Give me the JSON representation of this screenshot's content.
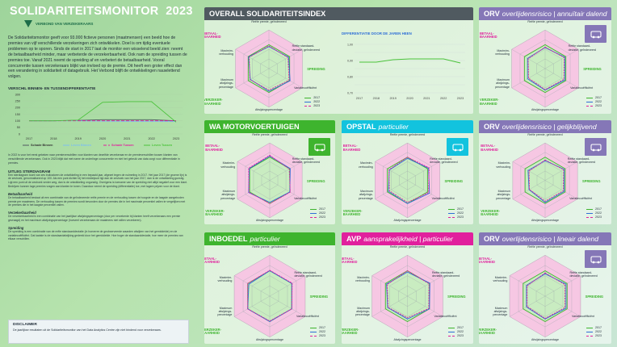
{
  "header": {
    "title": "SOLIDARITEITSMONITOR",
    "year": "2023",
    "logo_text": "VERBOND VAN VERZEKERAARS"
  },
  "intro": "De Solidariteitsmonitor geeft voor 93.000 fictieve personen (maatmensen) een beeld hoe de premies van vijf verschillende verzekeringen zich ontwikkelen. Doel is om tijdig eventuele problemen op te sporen. Sinds de start in 2017 laat de monitor een wisselend beeld zien: neemt de betaalbaarheid minder, maar verbeterde de verzekerbaarheid. Ook nam de spreiding tussen de premies toe. Vanaf 2021 neemt de spreiding af en verbetert de betaalbaarheid. Vooral concurrentie tussen verzekeraars blijkt van invloed op de premie. Dit heeft een groter effect dan een verandering in solidariteit of datagebruik. Het Verbond blijft de ontwikkelingen nauwlettend volgen.",
  "left_chart": {
    "title": "VERSCHIL BINNEN- EN TUSSENDIFFERENTIATIE"
  },
  "chart_data": [
    {
      "type": "line",
      "title": "VERSCHIL BINNEN- EN TUSSENDIFFERENTIATIE",
      "x": [
        "2017",
        "2018",
        "2019",
        "2020",
        "2021",
        "2022",
        "2023"
      ],
      "ylim": [
        0,
        300
      ],
      "yticks": [
        0,
        50,
        100,
        150,
        200,
        250,
        300
      ],
      "series": [
        {
          "name": "Schade Binnen",
          "color": "#505a60",
          "dash": "",
          "values": [
            100,
            100,
            103,
            108,
            108,
            108,
            100
          ]
        },
        {
          "name": "Leven Binnen",
          "color": "#7dbef0",
          "dash": "",
          "values": [
            100,
            100,
            100,
            97,
            95,
            95,
            95
          ]
        },
        {
          "name": "Schade Tussen",
          "color": "#e1209d",
          "dash": "4 2",
          "values": [
            100,
            100,
            100,
            100,
            100,
            100,
            100
          ]
        },
        {
          "name": "Leven Tussen",
          "color": "#4bc33b",
          "dash": "",
          "values": [
            100,
            100,
            105,
            240,
            245,
            245,
            90
          ]
        }
      ]
    },
    {
      "type": "line",
      "title": "DIFFERENTIATIE DOOR DE JAREN HEEN",
      "x": [
        "2017",
        "2018",
        "2019",
        "2020",
        "2021",
        "2022",
        "2023"
      ],
      "ylim": [
        0.7,
        1.0
      ],
      "yticks": [
        "1,00",
        "0,95",
        "0,90",
        "0,85",
        "0,80",
        "0,75",
        "0,70"
      ],
      "series": [
        {
          "name": "",
          "color": "#4bc33b",
          "dash": "",
          "values": [
            0.89,
            0.89,
            0.905,
            0.91,
            0.91,
            0.91,
            0.885
          ]
        }
      ]
    }
  ],
  "left_text": {
    "p1": "In 2022 is voor het eerst gekeken naar premieverschillen voor klanten van dezelfde verzekeraar en de premieverschillen tussen klanten van verschillende verzekeraars. Ook in 2023 blijkt dat met name de onderlinge concurrentie en niet het gebruik van data zorgt voor differentiatie in premies.",
    "h2": "UITLEG STERDIAGRAM",
    "p2": "Een sterdiagram toont van zes indicatoren de ontwikkeling in een bepaald jaar, afgezet tegen de nulmeting in 2017. Het jaar 2017 (de groene lijn) is de zeshoek, genormaliseerd op 100. Als een punt dichter bij het middelpunt ligt dan de zeshoek van het jaar 2017, dan is de ontwikkeling gunstig. Ligt een punt uit de zeshoek verder weg, dan is de ontwikkeling ongunstig. Overigens is toename van de spreiding niet altijd negatief voor een klant. Bedrijven kunnen lage premies vragen aan klanten te tonen. Daardoor neemt de spreiding (differentiatie) toe, met lagere prijzen voor de klant.",
    "h3": "Betaalbaarheid",
    "p3": "De betaalbaarheid bestaat uit een combinatie van de geïndexeerde reële premie en de verhouding tussen de hoogste en de laagste aangeboden premie per maatmens. De verhouding tussen de premies wordt bevonden door de premies die in het maximale percentiel vallen te vergelijken met de premies die in het laagste percentiel vallen.",
    "h4": "Verzekerbaarheid",
    "p4": "De verzekerbaarheid is een combinatie van het jaarlijkse afwijzingspercentage (door per verzekerde bij klanten heeft verzekeraars een premie gevraagd) en het maximum afwijzingspercentage (hoeveel verzekeraars de maatmens niet willen verzekeren).",
    "h5": "Spreiding",
    "p5": "De spreiding is een combinatie van de reële standaarddeviatie (in hoeverre de geobserveerde waarden afwijken van het gemiddelde) en de variatiecoëfficiënt. Dat laatste is de standaardafwijking gedeeld door het gemiddelde. Hoe hoger de standaarddeviatie, hoe meer de premies van elkaar verschillen."
  },
  "disclaimer": {
    "title": "DISCLAIMER",
    "text": "De jaarlijkse resultaten uit de Solidariteitsmonitor van het Data Analytics Centre zijn niet bindend voor verzekeraars."
  },
  "overall": {
    "title": "OVERALL SOLIDARITEITSINDEX",
    "diff_title": "DIFFERENTIATIE DOOR DE JAREN HEEN"
  },
  "radar_labels": {
    "top": "Reële premie, geïndexeerd",
    "right_top": "Reële standaard-deviatie, geïndexeerd",
    "right_bottom": "Variatiecoëfficiënt",
    "bottom": "Afwijzingspercentage",
    "left_bottom": "Maximum afwijzings-percentage",
    "left_top": "Maximim-verhouding",
    "betaal": "BETAAL-BAARHEID",
    "verzeker": "VERZEKER-BAARHEID",
    "spreiding": "SPREIDING"
  },
  "legend": {
    "y2017": "2017",
    "y2022": "2022",
    "y2023": "2023"
  },
  "panels": [
    {
      "id": "overall",
      "title": "OVERALL SOLIDARITEITSINDEX",
      "sub": "",
      "r22": [
        0.92,
        0.95,
        1.02,
        0.95,
        0.9,
        0.98
      ],
      "r23": [
        0.95,
        0.92,
        0.97,
        0.9,
        0.92,
        0.95
      ]
    },
    {
      "id": "orv-a",
      "title": "ORV",
      "sub": "overlijdensrisico | annuïtair dalend",
      "r22": [
        0.88,
        0.95,
        0.95,
        0.9,
        0.85,
        0.85
      ],
      "r23": [
        0.9,
        0.92,
        0.9,
        0.88,
        0.8,
        0.82
      ]
    },
    {
      "id": "wa",
      "title": "WA MOTORVOERTUIGEN",
      "sub": "",
      "r22": [
        1.05,
        1.02,
        1.0,
        0.95,
        1.05,
        1.02
      ],
      "r23": [
        1.08,
        0.97,
        1.02,
        1.0,
        1.03,
        1.05
      ]
    },
    {
      "id": "opstal",
      "title": "OPSTAL",
      "sub": "particulier",
      "r22": [
        0.95,
        1.05,
        1.1,
        1.0,
        0.95,
        0.9
      ],
      "r23": [
        1.0,
        1.08,
        1.05,
        0.95,
        0.9,
        0.92
      ]
    },
    {
      "id": "orv-g",
      "title": "ORV",
      "sub": "overlijdensrisico | gelijkblijvend",
      "r22": [
        0.85,
        0.95,
        0.95,
        0.95,
        0.8,
        0.85
      ],
      "r23": [
        0.88,
        0.92,
        0.9,
        0.9,
        0.78,
        0.8
      ]
    },
    {
      "id": "inboedel",
      "title": "INBOEDEL",
      "sub": "particulier",
      "r22": [
        1.0,
        1.0,
        1.0,
        1.0,
        1.0,
        0.95
      ],
      "r23": [
        1.02,
        1.02,
        1.0,
        0.98,
        1.0,
        1.0
      ]
    },
    {
      "id": "avp",
      "title": "AVP",
      "sub": "aansprakelijkheid | particulier",
      "r22": [
        0.95,
        1.02,
        1.0,
        0.9,
        0.9,
        0.95
      ],
      "r23": [
        1.0,
        0.98,
        0.97,
        0.85,
        0.88,
        0.92
      ]
    },
    {
      "id": "orv-l",
      "title": "ORV",
      "sub": "overlijdensrisico | lineair dalend",
      "r22": [
        0.88,
        0.95,
        0.95,
        0.9,
        0.85,
        0.85
      ],
      "r23": [
        0.92,
        0.9,
        0.9,
        0.88,
        0.82,
        0.82
      ]
    }
  ],
  "colors": {
    "green": "#3eb42e",
    "blue": "#2f6fd6",
    "pink": "#e1209d",
    "dark": "#505a60",
    "cyan": "#12c3de",
    "purple": "#8577b7"
  }
}
